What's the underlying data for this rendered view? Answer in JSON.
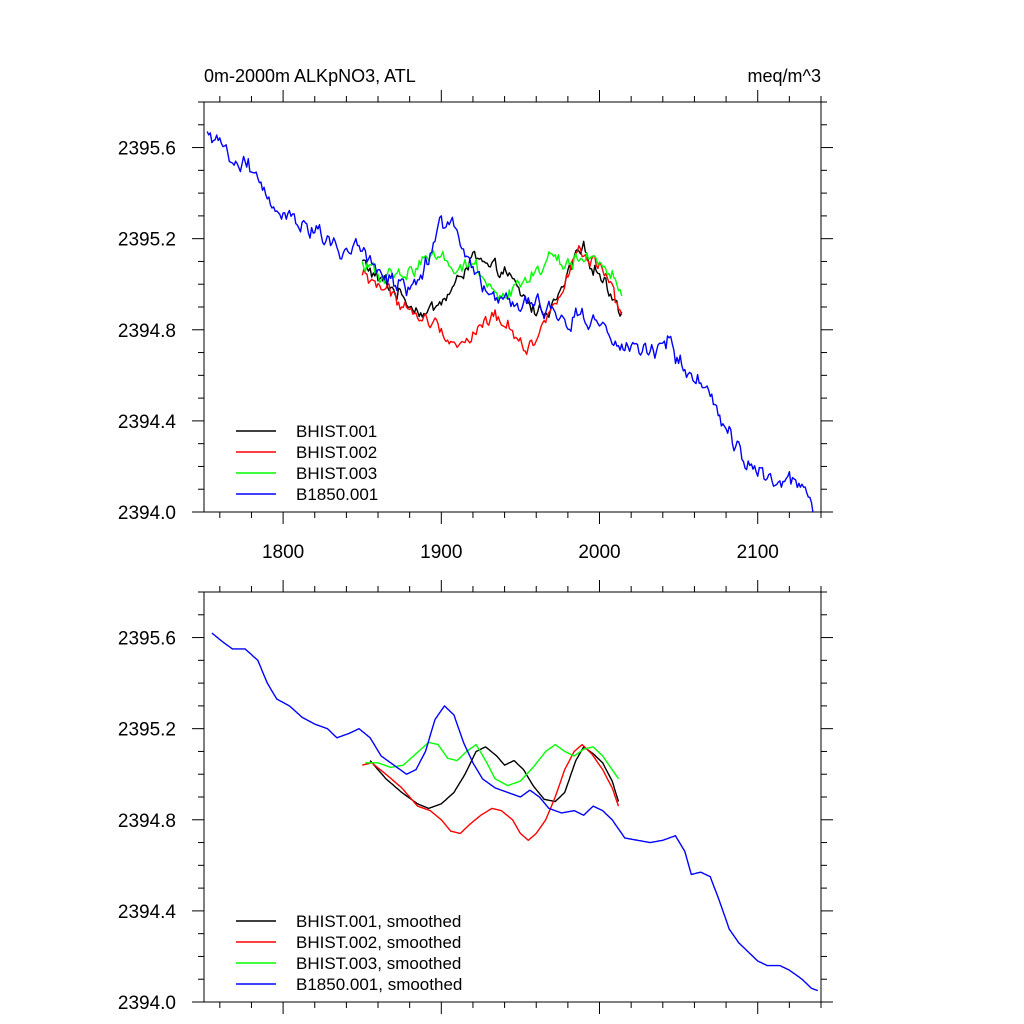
{
  "chart_data": [
    {
      "type": "line",
      "title_left": "0m-2000m ALKpNO3, ATL",
      "title_right": "meq/m^3",
      "xlabel": "",
      "ylabel": "",
      "xlim": [
        1750,
        2140
      ],
      "ylim": [
        2394.0,
        2395.8
      ],
      "x_ticks": [
        1800,
        1900,
        2000,
        2100
      ],
      "y_ticks": [
        "2394.0",
        "2394.4",
        "2394.8",
        "2395.2",
        "2395.6"
      ],
      "grid": false,
      "legend_position": "bottom-left",
      "series": [
        {
          "name": "BHIST.001",
          "color": "#000000",
          "noise": 0.03,
          "points": [
            [
              1850,
              2395.1
            ],
            [
              1860,
              2395.02
            ],
            [
              1870,
              2394.98
            ],
            [
              1880,
              2394.92
            ],
            [
              1890,
              2394.87
            ],
            [
              1900,
              2394.92
            ],
            [
              1910,
              2395.0
            ],
            [
              1915,
              2395.08
            ],
            [
              1920,
              2395.12
            ],
            [
              1930,
              2395.06
            ],
            [
              1940,
              2395.06
            ],
            [
              1950,
              2394.95
            ],
            [
              1960,
              2394.88
            ],
            [
              1970,
              2394.9
            ],
            [
              1975,
              2394.95
            ],
            [
              1985,
              2395.12
            ],
            [
              1990,
              2395.14
            ],
            [
              2000,
              2395.05
            ],
            [
              2008,
              2394.96
            ],
            [
              2014,
              2394.88
            ]
          ]
        },
        {
          "name": "BHIST.002",
          "color": "#ff0000",
          "noise": 0.03,
          "points": [
            [
              1850,
              2395.04
            ],
            [
              1860,
              2395.0
            ],
            [
              1870,
              2394.95
            ],
            [
              1880,
              2394.88
            ],
            [
              1890,
              2394.84
            ],
            [
              1900,
              2394.8
            ],
            [
              1910,
              2394.73
            ],
            [
              1920,
              2394.78
            ],
            [
              1930,
              2394.84
            ],
            [
              1935,
              2394.86
            ],
            [
              1945,
              2394.8
            ],
            [
              1955,
              2394.72
            ],
            [
              1965,
              2394.82
            ],
            [
              1975,
              2394.98
            ],
            [
              1985,
              2395.12
            ],
            [
              1990,
              2395.13
            ],
            [
              2000,
              2395.07
            ],
            [
              2008,
              2394.95
            ],
            [
              2014,
              2394.86
            ]
          ]
        },
        {
          "name": "BHIST.003",
          "color": "#00ff00",
          "noise": 0.03,
          "points": [
            [
              1850,
              2395.08
            ],
            [
              1860,
              2395.05
            ],
            [
              1870,
              2395.03
            ],
            [
              1880,
              2395.05
            ],
            [
              1890,
              2395.12
            ],
            [
              1900,
              2395.14
            ],
            [
              1910,
              2395.06
            ],
            [
              1920,
              2395.1
            ],
            [
              1930,
              2395.0
            ],
            [
              1940,
              2394.96
            ],
            [
              1950,
              2395.0
            ],
            [
              1960,
              2395.05
            ],
            [
              1970,
              2395.12
            ],
            [
              1980,
              2395.08
            ],
            [
              1990,
              2395.12
            ],
            [
              2000,
              2395.1
            ],
            [
              2008,
              2395.04
            ],
            [
              2014,
              2394.98
            ]
          ]
        },
        {
          "name": "B1850.001",
          "color": "#0000ff",
          "noise": 0.04,
          "points": [
            [
              1752,
              2395.65
            ],
            [
              1760,
              2395.58
            ],
            [
              1770,
              2395.55
            ],
            [
              1780,
              2395.52
            ],
            [
              1790,
              2395.4
            ],
            [
              1800,
              2395.32
            ],
            [
              1810,
              2395.28
            ],
            [
              1820,
              2395.22
            ],
            [
              1830,
              2395.18
            ],
            [
              1840,
              2395.15
            ],
            [
              1850,
              2395.12
            ],
            [
              1860,
              2395.05
            ],
            [
              1870,
              2395.02
            ],
            [
              1880,
              2394.98
            ],
            [
              1890,
              2395.08
            ],
            [
              1900,
              2395.28
            ],
            [
              1905,
              2395.3
            ],
            [
              1915,
              2395.15
            ],
            [
              1925,
              2395.02
            ],
            [
              1935,
              2394.95
            ],
            [
              1945,
              2394.9
            ],
            [
              1955,
              2394.92
            ],
            [
              1965,
              2394.9
            ],
            [
              1975,
              2394.85
            ],
            [
              1985,
              2394.84
            ],
            [
              1995,
              2394.85
            ],
            [
              2005,
              2394.8
            ],
            [
              2015,
              2394.72
            ],
            [
              2025,
              2394.71
            ],
            [
              2035,
              2394.7
            ],
            [
              2045,
              2394.72
            ],
            [
              2055,
              2394.58
            ],
            [
              2065,
              2394.56
            ],
            [
              2075,
              2394.45
            ],
            [
              2085,
              2394.28
            ],
            [
              2095,
              2394.22
            ],
            [
              2105,
              2394.16
            ],
            [
              2115,
              2394.13
            ],
            [
              2125,
              2394.1
            ],
            [
              2135,
              2394.05
            ]
          ]
        }
      ]
    },
    {
      "type": "line",
      "title_left": "",
      "title_right": "",
      "xlabel": "",
      "ylabel": "",
      "xlim": [
        1750,
        2140
      ],
      "ylim": [
        2394.0,
        2395.8
      ],
      "x_ticks": [],
      "y_ticks": [
        "2394.0",
        "2394.4",
        "2394.8",
        "2395.2",
        "2395.6"
      ],
      "grid": false,
      "legend_position": "bottom-left",
      "series": [
        {
          "name": "BHIST.001, smoothed",
          "color": "#000000",
          "noise": 0,
          "points": [
            [
              1855,
              2395.06
            ],
            [
              1865,
              2394.98
            ],
            [
              1875,
              2394.92
            ],
            [
              1885,
              2394.87
            ],
            [
              1892,
              2394.85
            ],
            [
              1900,
              2394.87
            ],
            [
              1908,
              2394.92
            ],
            [
              1915,
              2395.0
            ],
            [
              1922,
              2395.1
            ],
            [
              1928,
              2395.12
            ],
            [
              1935,
              2395.08
            ],
            [
              1940,
              2395.04
            ],
            [
              1946,
              2395.06
            ],
            [
              1952,
              2395.02
            ],
            [
              1958,
              2394.95
            ],
            [
              1965,
              2394.89
            ],
            [
              1972,
              2394.88
            ],
            [
              1978,
              2394.92
            ],
            [
              1985,
              2395.06
            ],
            [
              1990,
              2395.12
            ],
            [
              1996,
              2395.09
            ],
            [
              2002,
              2395.05
            ],
            [
              2008,
              2394.97
            ],
            [
              2012,
              2394.88
            ]
          ]
        },
        {
          "name": "BHIST.002, smoothed",
          "color": "#ff0000",
          "noise": 0,
          "points": [
            [
              1850,
              2395.04
            ],
            [
              1856,
              2395.05
            ],
            [
              1865,
              2395.0
            ],
            [
              1875,
              2394.94
            ],
            [
              1885,
              2394.86
            ],
            [
              1893,
              2394.84
            ],
            [
              1900,
              2394.8
            ],
            [
              1906,
              2394.75
            ],
            [
              1912,
              2394.74
            ],
            [
              1918,
              2394.78
            ],
            [
              1925,
              2394.82
            ],
            [
              1932,
              2394.85
            ],
            [
              1938,
              2394.84
            ],
            [
              1945,
              2394.8
            ],
            [
              1950,
              2394.74
            ],
            [
              1955,
              2394.71
            ],
            [
              1960,
              2394.74
            ],
            [
              1966,
              2394.8
            ],
            [
              1972,
              2394.9
            ],
            [
              1978,
              2395.02
            ],
            [
              1984,
              2395.1
            ],
            [
              1989,
              2395.13
            ],
            [
              1995,
              2395.09
            ],
            [
              2002,
              2395.02
            ],
            [
              2008,
              2394.94
            ],
            [
              2012,
              2394.86
            ]
          ]
        },
        {
          "name": "BHIST.003, smoothed",
          "color": "#00ff00",
          "noise": 0,
          "points": [
            [
              1852,
              2395.05
            ],
            [
              1860,
              2395.05
            ],
            [
              1868,
              2395.03
            ],
            [
              1876,
              2395.04
            ],
            [
              1884,
              2395.09
            ],
            [
              1892,
              2395.14
            ],
            [
              1898,
              2395.13
            ],
            [
              1904,
              2395.07
            ],
            [
              1910,
              2395.06
            ],
            [
              1916,
              2395.1
            ],
            [
              1922,
              2395.13
            ],
            [
              1928,
              2395.06
            ],
            [
              1934,
              2394.98
            ],
            [
              1942,
              2394.95
            ],
            [
              1950,
              2394.97
            ],
            [
              1958,
              2395.03
            ],
            [
              1966,
              2395.1
            ],
            [
              1972,
              2395.13
            ],
            [
              1978,
              2395.1
            ],
            [
              1984,
              2395.08
            ],
            [
              1990,
              2395.11
            ],
            [
              1996,
              2395.12
            ],
            [
              2002,
              2395.08
            ],
            [
              2008,
              2395.02
            ],
            [
              2012,
              2394.98
            ]
          ]
        },
        {
          "name": "B1850.001, smoothed",
          "color": "#0000ff",
          "noise": 0,
          "points": [
            [
              1755,
              2395.62
            ],
            [
              1762,
              2395.58
            ],
            [
              1768,
              2395.55
            ],
            [
              1776,
              2395.55
            ],
            [
              1784,
              2395.5
            ],
            [
              1790,
              2395.4
            ],
            [
              1796,
              2395.33
            ],
            [
              1804,
              2395.3
            ],
            [
              1812,
              2395.25
            ],
            [
              1820,
              2395.22
            ],
            [
              1828,
              2395.2
            ],
            [
              1834,
              2395.16
            ],
            [
              1842,
              2395.18
            ],
            [
              1848,
              2395.2
            ],
            [
              1855,
              2395.16
            ],
            [
              1862,
              2395.08
            ],
            [
              1870,
              2395.04
            ],
            [
              1878,
              2395.0
            ],
            [
              1884,
              2395.02
            ],
            [
              1890,
              2395.1
            ],
            [
              1896,
              2395.24
            ],
            [
              1902,
              2395.3
            ],
            [
              1908,
              2395.26
            ],
            [
              1914,
              2395.14
            ],
            [
              1920,
              2395.05
            ],
            [
              1926,
              2394.98
            ],
            [
              1934,
              2394.94
            ],
            [
              1942,
              2394.92
            ],
            [
              1950,
              2394.9
            ],
            [
              1956,
              2394.93
            ],
            [
              1962,
              2394.9
            ],
            [
              1968,
              2394.85
            ],
            [
              1976,
              2394.83
            ],
            [
              1984,
              2394.84
            ],
            [
              1990,
              2394.82
            ],
            [
              1996,
              2394.86
            ],
            [
              2002,
              2394.84
            ],
            [
              2008,
              2394.8
            ],
            [
              2016,
              2394.72
            ],
            [
              2024,
              2394.71
            ],
            [
              2032,
              2394.7
            ],
            [
              2040,
              2394.71
            ],
            [
              2048,
              2394.73
            ],
            [
              2054,
              2394.66
            ],
            [
              2058,
              2394.56
            ],
            [
              2064,
              2394.57
            ],
            [
              2070,
              2394.55
            ],
            [
              2076,
              2394.44
            ],
            [
              2082,
              2394.32
            ],
            [
              2088,
              2394.26
            ],
            [
              2094,
              2394.22
            ],
            [
              2100,
              2394.18
            ],
            [
              2106,
              2394.16
            ],
            [
              2114,
              2394.16
            ],
            [
              2120,
              2394.14
            ],
            [
              2128,
              2394.1
            ],
            [
              2134,
              2394.06
            ],
            [
              2138,
              2394.05
            ]
          ]
        }
      ]
    }
  ]
}
